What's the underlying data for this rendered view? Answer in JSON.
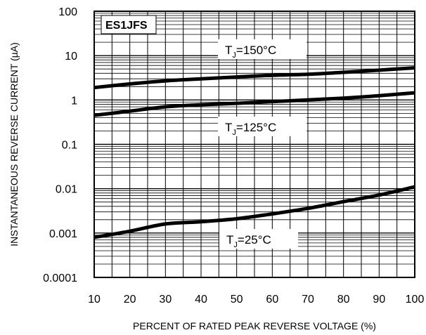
{
  "chart_data": {
    "type": "line",
    "title": "ES1JFS",
    "xlabel": "PERCENT OF RATED PEAK REVERSE VOLTAGE (%)",
    "ylabel": "INSTANTANEOUS REVERSE CURRENT (µA)",
    "xlim": [
      10,
      100
    ],
    "ylim": [
      0.0001,
      100
    ],
    "yscale": "log",
    "grid": true,
    "x_ticks": [
      "10",
      "20",
      "30",
      "40",
      "50",
      "60",
      "70",
      "80",
      "90",
      "100"
    ],
    "y_ticks": [
      "100",
      "10",
      "1",
      "0.1",
      "0.01",
      "0.001",
      "0.0001"
    ],
    "series": [
      {
        "name": "TJ=150°C",
        "label_main": "T",
        "label_sub": "J",
        "label_rest": "=150°C",
        "x": [
          10,
          20,
          30,
          40,
          50,
          60,
          70,
          80,
          90,
          100
        ],
        "y": [
          1.9,
          2.3,
          2.7,
          3.0,
          3.3,
          3.6,
          3.8,
          4.2,
          4.7,
          5.3
        ]
      },
      {
        "name": "TJ=125°C",
        "label_main": "T",
        "label_sub": "J",
        "label_rest": "=125°C",
        "x": [
          10,
          20,
          30,
          40,
          50,
          60,
          70,
          80,
          90,
          100
        ],
        "y": [
          0.45,
          0.56,
          0.7,
          0.78,
          0.84,
          0.92,
          1.0,
          1.1,
          1.25,
          1.45
        ]
      },
      {
        "name": "TJ=25°C",
        "label_main": "T",
        "label_sub": "J",
        "label_rest": "=25°C",
        "x": [
          10,
          20,
          30,
          40,
          50,
          60,
          70,
          80,
          90,
          100
        ],
        "y": [
          0.0008,
          0.0011,
          0.0016,
          0.0018,
          0.0021,
          0.0027,
          0.0036,
          0.0051,
          0.0072,
          0.011
        ]
      }
    ]
  }
}
